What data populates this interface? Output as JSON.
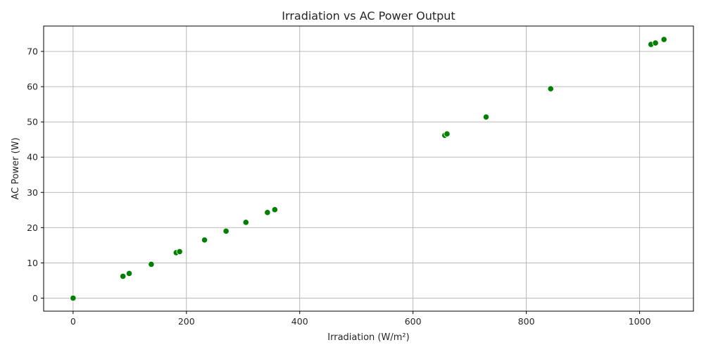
{
  "chart_data": {
    "type": "scatter",
    "title": "Irradiation vs AC Power Output",
    "xlabel": "Irradiation (W/m²)",
    "ylabel": "AC Power (W)",
    "xlim": [
      -52,
      1095
    ],
    "ylim": [
      -3.7,
      77.2
    ],
    "xticks": [
      0,
      200,
      400,
      600,
      800,
      1000
    ],
    "yticks": [
      0,
      10,
      20,
      30,
      40,
      50,
      60,
      70
    ],
    "grid": true,
    "marker_color": "#008000",
    "marker_edge": "#ffffff",
    "points": [
      {
        "x": 0,
        "y": 0.0
      },
      {
        "x": 88,
        "y": 6.2
      },
      {
        "x": 99,
        "y": 7.0
      },
      {
        "x": 138,
        "y": 9.6
      },
      {
        "x": 182,
        "y": 12.9
      },
      {
        "x": 188,
        "y": 13.2
      },
      {
        "x": 232,
        "y": 16.5
      },
      {
        "x": 270,
        "y": 19.0
      },
      {
        "x": 305,
        "y": 21.5
      },
      {
        "x": 343,
        "y": 24.3
      },
      {
        "x": 356,
        "y": 25.1
      },
      {
        "x": 656,
        "y": 46.2
      },
      {
        "x": 660,
        "y": 46.6
      },
      {
        "x": 729,
        "y": 51.4
      },
      {
        "x": 843,
        "y": 59.4
      },
      {
        "x": 1020,
        "y": 72.0
      },
      {
        "x": 1028,
        "y": 72.4
      },
      {
        "x": 1043,
        "y": 73.4
      }
    ]
  }
}
